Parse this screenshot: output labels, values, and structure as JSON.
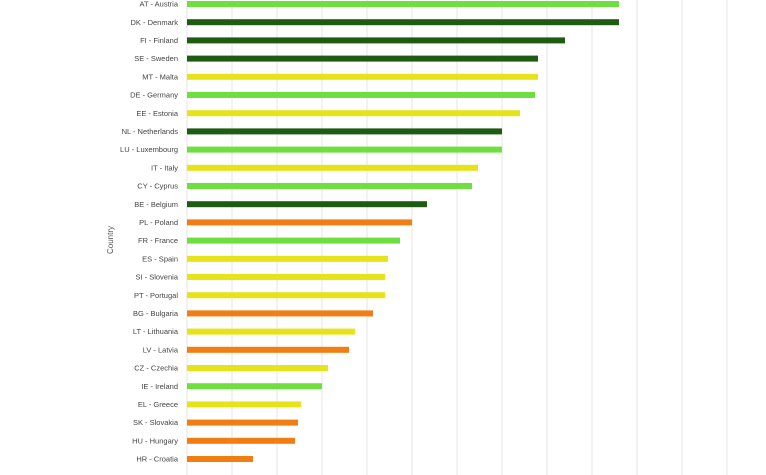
{
  "chart_data": {
    "type": "bar",
    "orientation": "horizontal",
    "ylabel": "Country",
    "grid": true,
    "colors": {
      "dark_green": "#1e5c12",
      "light_green": "#6ddf3f",
      "yellow": "#e6e31a",
      "orange": "#f27d12"
    },
    "categories": [
      "AT - Austria",
      "DK - Denmark",
      "FI - Finland",
      "SE - Sweden",
      "MT - Malta",
      "DE - Germany",
      "EE - Estonia",
      "NL - Netherlands",
      "LU - Luxembourg",
      "IT - Italy",
      "CY - Cyprus",
      "BE - Belgium",
      "PL - Poland",
      "FR - France",
      "ES - Spain",
      "SI - Slovenia",
      "PT - Portugal",
      "BG - Bulgaria",
      "LT - Lithuania",
      "LV - Latvia",
      "CZ - Czechia",
      "IE - Ireland",
      "EL - Greece",
      "SK - Slovakia",
      "HU - Hungary",
      "HR - Croatia"
    ],
    "values": [
      14.4,
      14.4,
      12.6,
      11.7,
      11.7,
      11.6,
      11.1,
      10.5,
      10.5,
      9.7,
      9.5,
      8.0,
      7.5,
      7.1,
      6.7,
      6.6,
      6.6,
      6.2,
      5.6,
      5.4,
      4.7,
      4.5,
      3.8,
      3.7,
      3.6,
      2.2
    ],
    "bar_colors": [
      "light_green",
      "dark_green",
      "dark_green",
      "dark_green",
      "yellow",
      "light_green",
      "yellow",
      "dark_green",
      "light_green",
      "yellow",
      "light_green",
      "dark_green",
      "orange",
      "light_green",
      "yellow",
      "yellow",
      "yellow",
      "orange",
      "yellow",
      "orange",
      "yellow",
      "light_green",
      "yellow",
      "orange",
      "orange",
      "orange"
    ],
    "xlim": [
      -4,
      20
    ],
    "grid_step": 1.5
  }
}
